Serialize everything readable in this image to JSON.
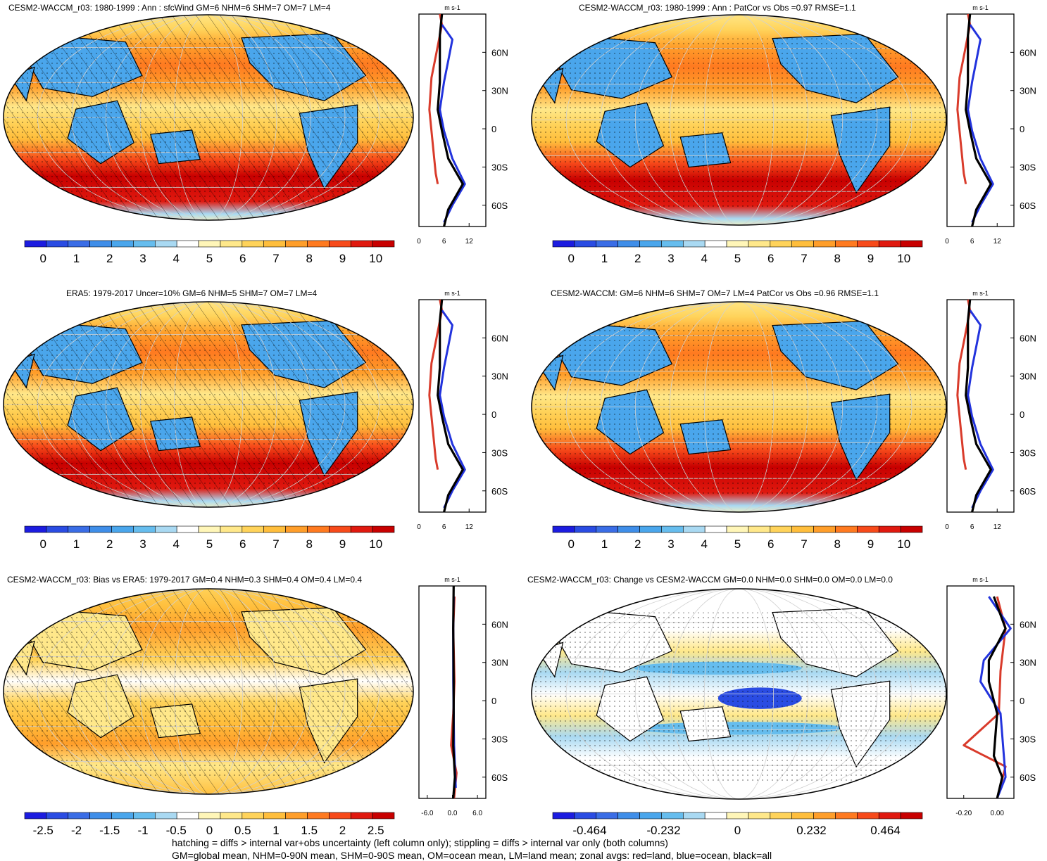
{
  "colors": {
    "scale": [
      "#1c1ce0",
      "#2a4ce3",
      "#3a6de6",
      "#3f8ee9",
      "#4aa6ec",
      "#66bdee",
      "#a9d9f2",
      "#ffffff",
      "#fff6b8",
      "#ffe88a",
      "#ffd35a",
      "#ffbe3c",
      "#ff9e2a",
      "#ff7a20",
      "#f74a1a",
      "#e0190f",
      "#c80000"
    ],
    "land": "#d93b2b",
    "ocean": "#2233dd",
    "all": "#000000",
    "hatch": "#000000",
    "grid": "#d0d0d0"
  },
  "panels": [
    {
      "title": "CESM2-WACCM_r03: 1980-1999 : Ann : sfcWind GM=6 NHM=6 SHM=7 OM=7 LM=4",
      "field": "wind",
      "hatching": true,
      "stippling": true,
      "colorbar_labels": [
        "0",
        "1",
        "2",
        "3",
        "4",
        "5",
        "6",
        "7",
        "8",
        "9",
        "10"
      ],
      "zonal": {
        "unit": "m s-1",
        "xticks": [
          "0",
          "6",
          "12"
        ],
        "yticks": [
          "60N",
          "30N",
          "0",
          "30S",
          "60S"
        ],
        "profile": "wind"
      }
    },
    {
      "title": "CESM2-WACCM_r03: 1980-1999 : Ann : PatCor vs Obs =0.97 RMSE=1.1",
      "field": "wind",
      "hatching": false,
      "stippling": true,
      "colorbar_labels": [
        "0",
        "1",
        "2",
        "3",
        "4",
        "5",
        "6",
        "7",
        "8",
        "9",
        "10"
      ],
      "zonal": {
        "unit": "m s-1",
        "xticks": [
          "0",
          "6",
          "12"
        ],
        "yticks": [
          "60N",
          "30N",
          "0",
          "30S",
          "60S"
        ],
        "profile": "wind"
      }
    },
    {
      "title": "ERA5: 1979-2017 Uncer=10% GM=6 NHM=5 SHM=7 OM=7 LM=4",
      "field": "wind",
      "hatching": true,
      "stippling": true,
      "colorbar_labels": [
        "0",
        "1",
        "2",
        "3",
        "4",
        "5",
        "6",
        "7",
        "8",
        "9",
        "10"
      ],
      "zonal": {
        "unit": "m s-1",
        "xticks": [
          "0",
          "6",
          "12"
        ],
        "yticks": [
          "60N",
          "30N",
          "0",
          "30S",
          "60S"
        ],
        "profile": "wind"
      }
    },
    {
      "title": "CESM2-WACCM: GM=6 NHM=6 SHM=7 OM=7 LM=4 PatCor vs Obs =0.96 RMSE=1.1",
      "field": "wind",
      "hatching": false,
      "stippling": true,
      "colorbar_labels": [
        "0",
        "1",
        "2",
        "3",
        "4",
        "5",
        "6",
        "7",
        "8",
        "9",
        "10"
      ],
      "zonal": {
        "unit": "m s-1",
        "xticks": [
          "0",
          "6",
          "12"
        ],
        "yticks": [
          "60N",
          "30N",
          "0",
          "30S",
          "60S"
        ],
        "profile": "wind"
      }
    },
    {
      "title": "CESM2-WACCM_r03: Bias vs ERA5: 1979-2017 GM=0.4 NHM=0.3 SHM=0.4 OM=0.4 LM=0.4",
      "field": "bias",
      "hatching": true,
      "stippling": true,
      "colorbar_labels": [
        "-2.5",
        "-2",
        "-1.5",
        "-1",
        "-0.5",
        "0",
        "0.5",
        "1",
        "1.5",
        "2",
        "2.5"
      ],
      "zonal": {
        "unit": "m s-1",
        "xticks": [
          "-6.0",
          "0.0",
          "6.0"
        ],
        "yticks": [
          "60N",
          "30N",
          "0",
          "30S",
          "60S"
        ],
        "profile": "bias"
      }
    },
    {
      "title": "CESM2-WACCM_r03: Change vs CESM2-WACCM GM=0.0 NHM=0.0 SHM=0.0 OM=0.0 LM=0.0",
      "field": "change",
      "hatching": false,
      "stippling": true,
      "colorbar_labels": [
        "-0.464",
        "-0.232",
        "0",
        "0.232",
        "0.464"
      ],
      "zonal": {
        "unit": "m s-1",
        "xticks": [
          "-0.20",
          "0.00"
        ],
        "yticks": [
          "60N",
          "30N",
          "0",
          "30S",
          "60S"
        ],
        "profile": "change"
      }
    }
  ],
  "footer": {
    "line1": "hatching = diffs > internal var+obs uncertainty (left column only); stippling = diffs > internal var only (both columns)",
    "line2": "GM=global mean, NHM=0-90N mean, SHM=0-90S mean, OM=ocean mean, LM=land mean; zonal avgs: red=land, blue=ocean, black=all"
  }
}
